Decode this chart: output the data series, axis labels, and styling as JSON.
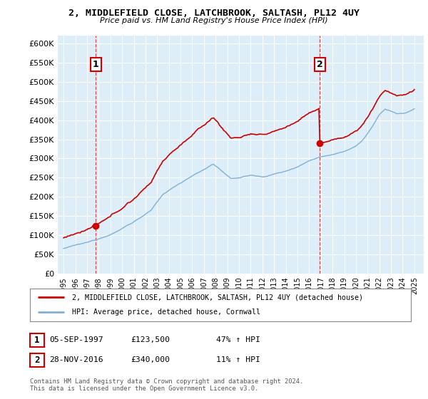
{
  "title1": "2, MIDDLEFIELD CLOSE, LATCHBROOK, SALTASH, PL12 4UY",
  "title2": "Price paid vs. HM Land Registry's House Price Index (HPI)",
  "ylim": [
    0,
    620000
  ],
  "yticks": [
    0,
    50000,
    100000,
    150000,
    200000,
    250000,
    300000,
    350000,
    400000,
    450000,
    500000,
    550000,
    600000
  ],
  "ytick_labels": [
    "£0",
    "£50K",
    "£100K",
    "£150K",
    "£200K",
    "£250K",
    "£300K",
    "£350K",
    "£400K",
    "£450K",
    "£500K",
    "£550K",
    "£600K"
  ],
  "sale1_x": 1997.75,
  "sale1_y": 123500,
  "sale1_label": "1",
  "sale2_x": 2016.92,
  "sale2_y": 340000,
  "sale2_label": "2",
  "line_red_color": "#cc0000",
  "line_blue_color": "#7fb0d8",
  "fill_blue_color": "#ddeef8",
  "dashed_color": "#cc0000",
  "marker_color": "#cc0000",
  "bg_color": "#ffffff",
  "plot_bg_color": "#ddeef8",
  "grid_color": "#ffffff",
  "legend_label_red": "2, MIDDLEFIELD CLOSE, LATCHBROOK, SALTASH, PL12 4UY (detached house)",
  "legend_label_blue": "HPI: Average price, detached house, Cornwall",
  "annotation1_date": "05-SEP-1997",
  "annotation1_price": "£123,500",
  "annotation1_hpi": "47% ↑ HPI",
  "annotation2_date": "28-NOV-2016",
  "annotation2_price": "£340,000",
  "annotation2_hpi": "11% ↑ HPI",
  "footer": "Contains HM Land Registry data © Crown copyright and database right 2024.\nThis data is licensed under the Open Government Licence v3.0.",
  "xtick_years": [
    1995,
    1996,
    1997,
    1998,
    1999,
    2000,
    2001,
    2002,
    2003,
    2004,
    2005,
    2006,
    2007,
    2008,
    2009,
    2010,
    2011,
    2012,
    2013,
    2014,
    2015,
    2016,
    2017,
    2018,
    2019,
    2020,
    2021,
    2022,
    2023,
    2024,
    2025
  ],
  "xlim_left": 1994.5,
  "xlim_right": 2025.8
}
